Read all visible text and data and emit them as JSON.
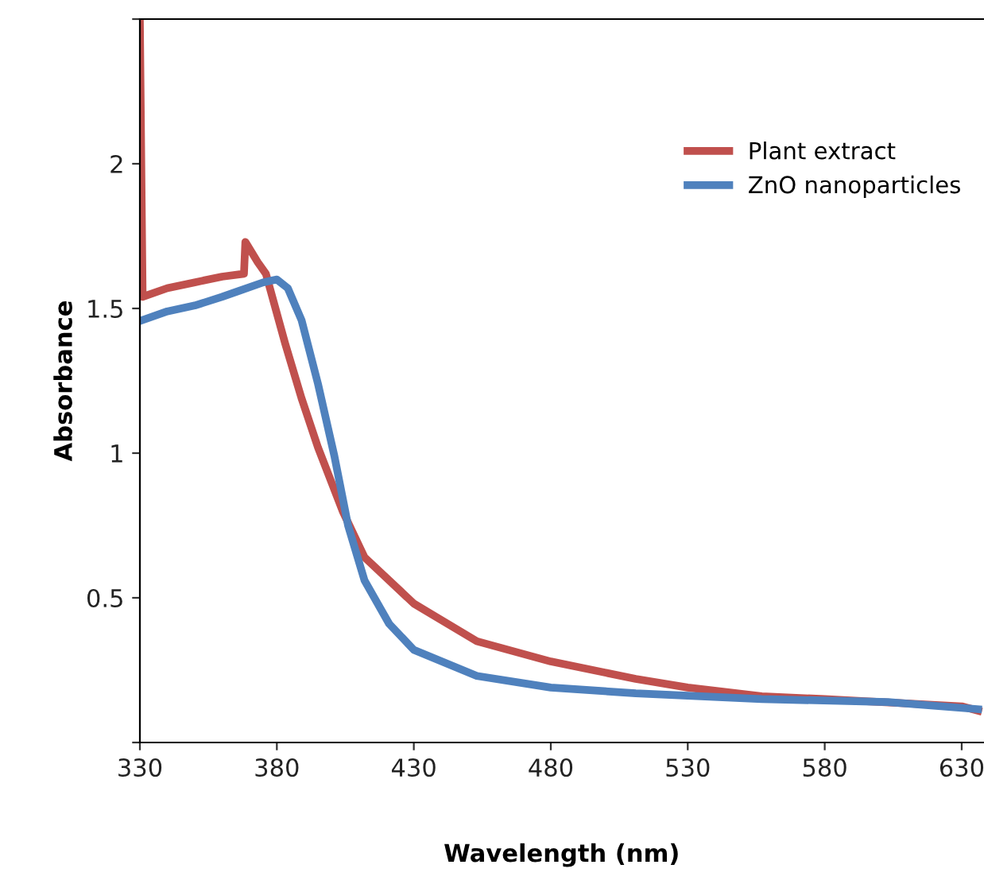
{
  "chart_data": {
    "type": "line",
    "xlabel": "Wavelength (nm)",
    "ylabel": "Absorbance",
    "xlim": [
      330,
      638
    ],
    "ylim": [
      0,
      2.5
    ],
    "xticks": [
      330,
      380,
      430,
      480,
      530,
      580,
      630
    ],
    "yticks": [
      {
        "value": 0,
        "label": null
      },
      0.5,
      1,
      1.5,
      2,
      {
        "value": 2.5,
        "label": null
      }
    ],
    "grid": false,
    "legend": "top right",
    "line_style": "solid",
    "marker": "none",
    "series": [
      {
        "name": "Plant extract",
        "color": "#c0504d",
        "x": [
          330,
          331,
          340,
          350,
          360,
          368,
          368.5,
          373,
          376,
          383,
          389,
          395,
          404,
          412,
          430,
          453,
          480,
          511,
          530,
          557,
          580,
          630,
          636
        ],
        "values": [
          2.49,
          1.54,
          1.57,
          1.59,
          1.61,
          1.62,
          1.73,
          1.66,
          1.62,
          1.38,
          1.19,
          1.02,
          0.8,
          0.64,
          0.48,
          0.35,
          0.28,
          0.22,
          0.19,
          0.16,
          0.15,
          0.125,
          0.11
        ]
      },
      {
        "name": "ZnO nanoparticles",
        "color": "#4f81bd",
        "x": [
          331,
          340,
          350,
          360,
          366,
          375,
          380,
          384,
          389,
          395,
          401,
          406,
          412,
          421,
          430,
          453,
          480,
          511,
          557,
          603,
          636
        ],
        "values": [
          1.46,
          1.49,
          1.51,
          1.54,
          1.56,
          1.59,
          1.6,
          1.57,
          1.46,
          1.24,
          0.99,
          0.75,
          0.56,
          0.41,
          0.32,
          0.23,
          0.19,
          0.17,
          0.15,
          0.14,
          0.115
        ]
      }
    ]
  }
}
